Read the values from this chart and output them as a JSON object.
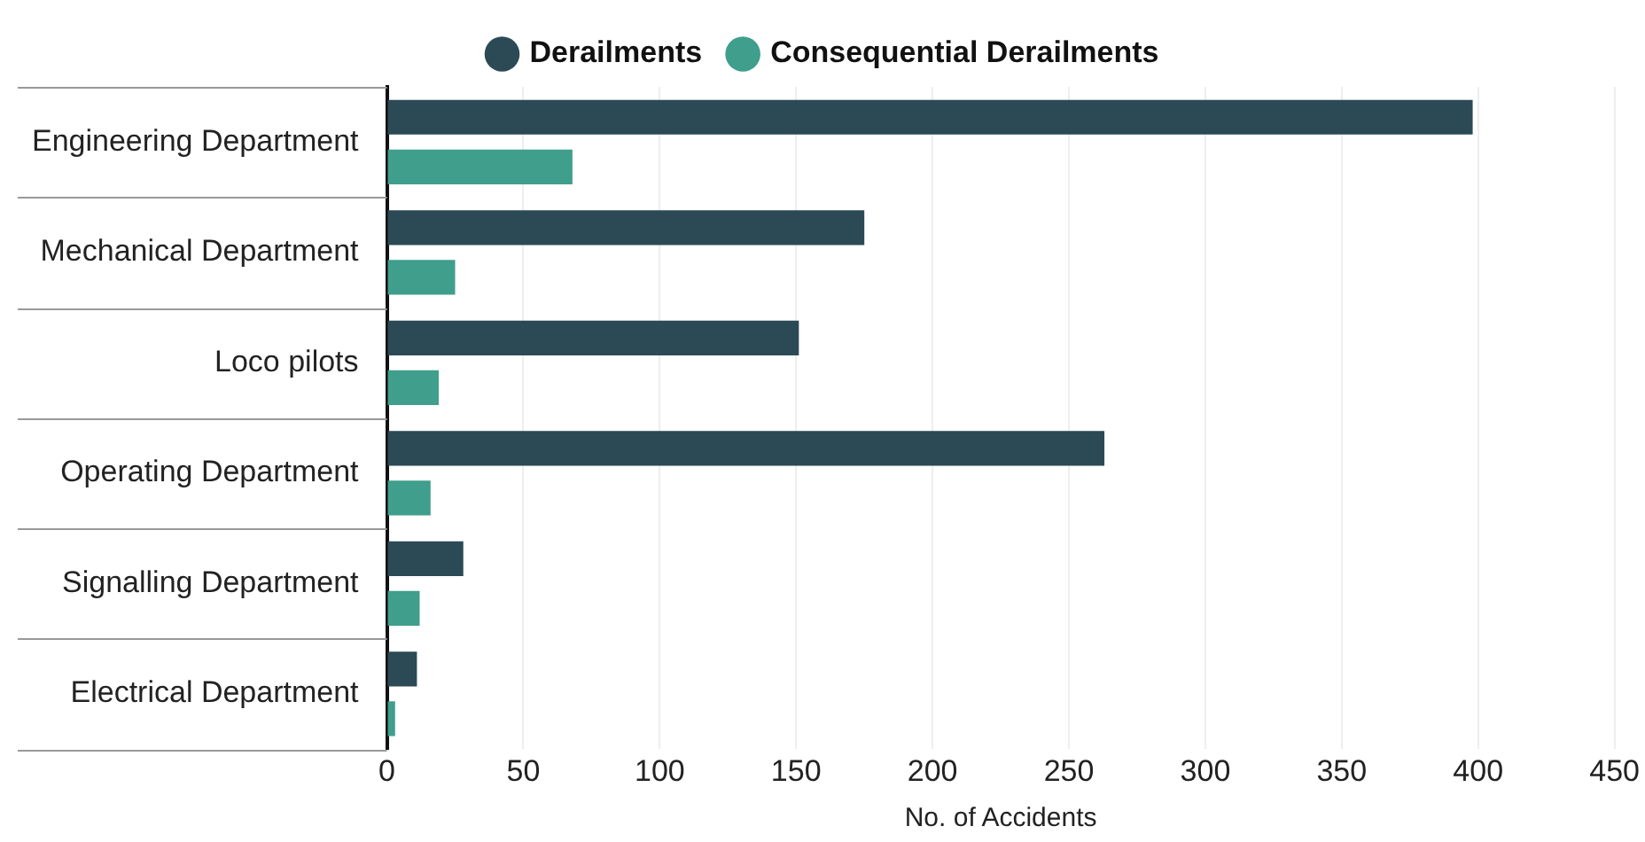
{
  "chart_data": {
    "type": "bar",
    "orientation": "horizontal",
    "xlabel": "No. of Accidents",
    "categories": [
      "Engineering Department",
      "Mechanical Department",
      "Loco pilots",
      "Operating Department",
      "Signalling Department",
      "Electrical Department"
    ],
    "series": [
      {
        "name": "Derailments",
        "color": "#2b4a55",
        "values": [
          398,
          175,
          151,
          263,
          28,
          11
        ]
      },
      {
        "name": "Consequential Derailments",
        "color": "#3f9e8c",
        "values": [
          68,
          25,
          19,
          16,
          12,
          3
        ]
      }
    ],
    "xlim": [
      0,
      450
    ],
    "xticks": [
      0,
      50,
      100,
      150,
      200,
      250,
      300,
      350,
      400,
      450
    ],
    "grid": "x",
    "legend": "top"
  }
}
